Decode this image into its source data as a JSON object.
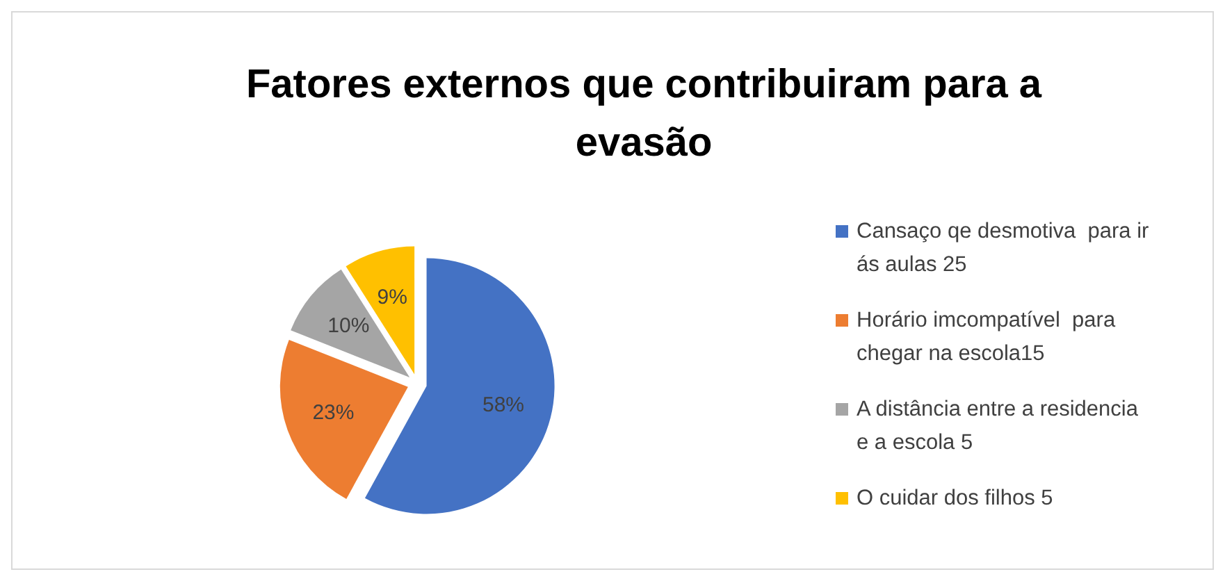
{
  "chart_data": {
    "type": "pie",
    "title": "Fatores externos que contribuiram para a evasão",
    "categories": [
      "Cansaço qe desmotiva  para ir ás aulas 25",
      "Horário imcompatível  para chegar na escola15",
      "A distância entre a residencia  e a escola 5",
      "O cuidar dos filhos 5"
    ],
    "values": [
      58,
      23,
      10,
      9
    ],
    "colors": [
      "#4472c4",
      "#ed7d31",
      "#a5a5a5",
      "#ffc000"
    ],
    "value_labels": [
      "58%",
      "23%",
      "10%",
      "9%"
    ],
    "legend": "right"
  }
}
